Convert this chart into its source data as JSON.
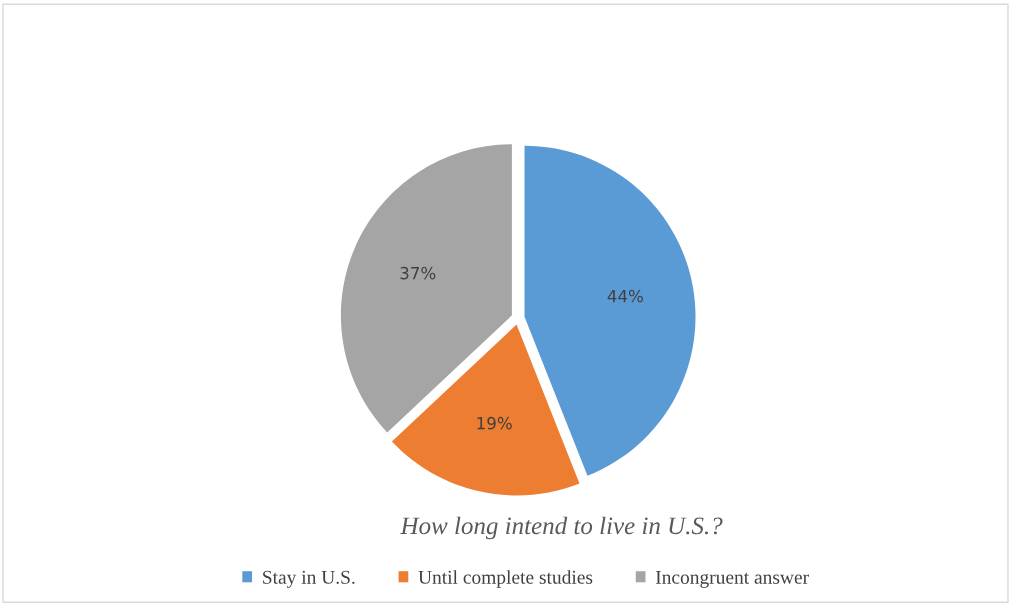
{
  "chart_data": {
    "type": "pie",
    "title": "How long intend to live in U.S.?",
    "categories": [
      "Stay in U.S.",
      "Until complete studies",
      "Incongruent answer"
    ],
    "values": [
      44,
      19,
      37
    ],
    "colors": [
      "#5b9bd5",
      "#ed7d31",
      "#a5a5a5"
    ],
    "value_labels": [
      "44%",
      "19%",
      "37%"
    ],
    "legend": "bottom"
  }
}
